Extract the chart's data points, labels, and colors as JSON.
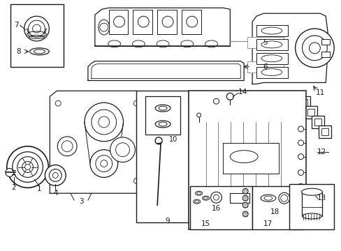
{
  "bg_color": "#ffffff",
  "line_color": "#1a1a1a",
  "gray_color": "#888888",
  "fig_w": 4.89,
  "fig_h": 3.6,
  "dpi": 100
}
